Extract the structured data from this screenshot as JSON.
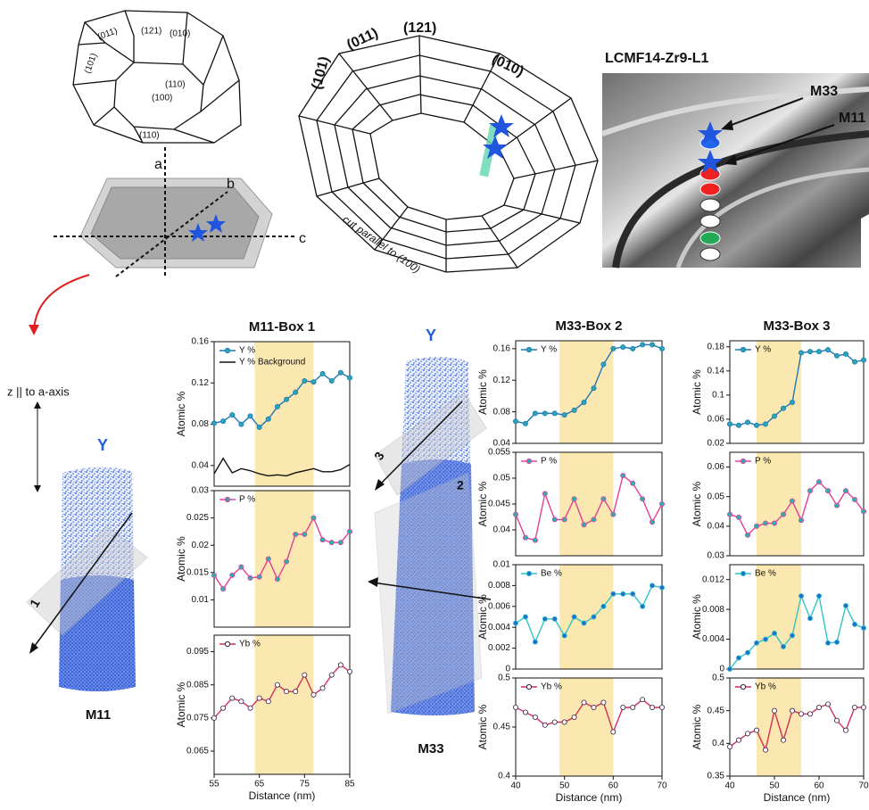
{
  "figure": {
    "crystal_faces": [
      "(011)",
      "(121)",
      "(010)",
      "(101)",
      "(110)",
      "(100)",
      "(110)"
    ],
    "axes": [
      "a",
      "b",
      "c"
    ],
    "ring_faces": [
      "(101)",
      "(011)",
      "(121)",
      "(010)"
    ],
    "cut_label": "cut parallel to (100)",
    "image_title": "LCMF14-Zr9-L1",
    "image_labels": [
      "M33",
      "M11"
    ],
    "z_label": "z || to a-axis",
    "m11": {
      "element": "Y",
      "box": "1",
      "name": "M11"
    },
    "m33": {
      "element": "Y",
      "boxes": [
        "3",
        "2"
      ],
      "name": "M33"
    }
  },
  "chart_data": [
    {
      "type": "line",
      "title": "M11-Box 1",
      "ylabel": "Atomic %",
      "legend": "upper left",
      "highlight": [
        64,
        77
      ],
      "x": [
        55,
        57,
        59,
        61,
        63,
        65,
        67,
        69,
        71,
        73,
        75,
        77,
        79,
        81,
        83,
        85
      ],
      "xlim": [
        55,
        85
      ],
      "ylim": [
        0.02,
        0.16
      ],
      "yticks": [
        0.04,
        0.08,
        0.12,
        0.16
      ],
      "series": [
        {
          "name": "Y %",
          "color": "#1f77b4",
          "marker_color": "#2aa6b8",
          "values": [
            0.081,
            0.083,
            0.089,
            0.08,
            0.088,
            0.077,
            0.085,
            0.097,
            0.104,
            0.111,
            0.122,
            0.121,
            0.129,
            0.122,
            0.13,
            0.125
          ]
        },
        {
          "name": "Y % Background",
          "color": "#111111",
          "values": [
            0.032,
            0.047,
            0.033,
            0.037,
            0.035,
            0.032,
            0.03,
            0.031,
            0.03,
            0.033,
            0.035,
            0.037,
            0.034,
            0.034,
            0.036,
            0.041
          ]
        }
      ]
    },
    {
      "type": "line",
      "ylabel": "Atomic %",
      "legend": "upper left",
      "highlight": [
        64,
        77
      ],
      "x": [
        55,
        57,
        59,
        61,
        63,
        65,
        67,
        69,
        71,
        73,
        75,
        77,
        79,
        81,
        83,
        85
      ],
      "xlim": [
        55,
        85
      ],
      "ylim": [
        0.005,
        0.03
      ],
      "yticks": [
        0.01,
        0.015,
        0.02,
        0.025,
        0.03
      ],
      "series": [
        {
          "name": "P %",
          "color": "#e0409a",
          "marker_color": "#2ab0b0",
          "values": [
            0.0145,
            0.012,
            0.0145,
            0.016,
            0.014,
            0.0142,
            0.0175,
            0.0138,
            0.017,
            0.022,
            0.022,
            0.025,
            0.021,
            0.0205,
            0.0205,
            0.0225
          ]
        }
      ]
    },
    {
      "type": "line",
      "ylabel": "Atomic %",
      "xlabel": "Distance (nm)",
      "legend": "upper left",
      "highlight": [
        64,
        77
      ],
      "x": [
        55,
        57,
        59,
        61,
        63,
        65,
        67,
        69,
        71,
        73,
        75,
        77,
        79,
        81,
        83,
        85
      ],
      "xlim": [
        55,
        85
      ],
      "xticks": [
        55,
        65,
        75,
        85
      ],
      "ylim": [
        0.058,
        0.1
      ],
      "yticks": [
        0.065,
        0.075,
        0.085,
        0.095
      ],
      "series": [
        {
          "name": "Yb %",
          "color": "#d0305a",
          "marker_color": "#ffffff",
          "values": [
            0.075,
            0.078,
            0.081,
            0.08,
            0.078,
            0.081,
            0.08,
            0.085,
            0.083,
            0.083,
            0.088,
            0.082,
            0.084,
            0.088,
            0.091,
            0.089
          ]
        }
      ]
    },
    {
      "type": "line",
      "title": "M33-Box 2",
      "ylabel": "Atomic %",
      "legend": "upper left",
      "highlight": [
        49,
        60
      ],
      "x": [
        40,
        42,
        44,
        46,
        48,
        50,
        52,
        54,
        56,
        58,
        60,
        62,
        64,
        66,
        68,
        70
      ],
      "xlim": [
        40,
        70
      ],
      "ylim": [
        0.04,
        0.17
      ],
      "yticks": [
        0.04,
        0.08,
        0.12,
        0.16
      ],
      "series": [
        {
          "name": "Y %",
          "color": "#1f77b4",
          "marker_color": "#2aa6b8",
          "values": [
            0.068,
            0.065,
            0.078,
            0.078,
            0.078,
            0.076,
            0.082,
            0.092,
            0.11,
            0.14,
            0.16,
            0.162,
            0.16,
            0.165,
            0.165,
            0.16
          ]
        }
      ]
    },
    {
      "type": "line",
      "ylabel": "Atomic %",
      "legend": "upper left",
      "highlight": [
        49,
        60
      ],
      "x": [
        40,
        42,
        44,
        46,
        48,
        50,
        52,
        54,
        56,
        58,
        60,
        62,
        64,
        66,
        68,
        70
      ],
      "xlim": [
        40,
        70
      ],
      "ylim": [
        0.035,
        0.055
      ],
      "yticks": [
        0.04,
        0.045,
        0.05,
        0.055
      ],
      "series": [
        {
          "name": "P %",
          "color": "#e0409a",
          "marker_color": "#2ab0b0",
          "values": [
            0.043,
            0.0385,
            0.038,
            0.047,
            0.042,
            0.042,
            0.046,
            0.041,
            0.042,
            0.046,
            0.043,
            0.0505,
            0.049,
            0.046,
            0.0415,
            0.045
          ]
        }
      ]
    },
    {
      "type": "line",
      "ylabel": "Atomic %",
      "legend": "upper left",
      "highlight": [
        49,
        60
      ],
      "x": [
        40,
        42,
        44,
        46,
        48,
        50,
        52,
        54,
        56,
        58,
        60,
        62,
        64,
        66,
        68,
        70
      ],
      "xlim": [
        40,
        70
      ],
      "ylim": [
        0,
        0.01
      ],
      "yticks": [
        0,
        0.002,
        0.004,
        0.006,
        0.008,
        0.01
      ],
      "series": [
        {
          "name": "Be %",
          "color": "#33c4c4",
          "marker_color": "#1f6fd0",
          "values": [
            0.0044,
            0.005,
            0.0026,
            0.0048,
            0.0048,
            0.0032,
            0.005,
            0.0044,
            0.005,
            0.006,
            0.0072,
            0.0072,
            0.0072,
            0.006,
            0.008,
            0.0078
          ]
        }
      ]
    },
    {
      "type": "line",
      "ylabel": "Atomic %",
      "xlabel": "Distance (nm)",
      "legend": "upper left",
      "highlight": [
        49,
        60
      ],
      "x": [
        40,
        42,
        44,
        46,
        48,
        50,
        52,
        54,
        56,
        58,
        60,
        62,
        64,
        66,
        68,
        70
      ],
      "xlim": [
        40,
        70
      ],
      "xticks": [
        40,
        50,
        60,
        70
      ],
      "ylim": [
        0.4,
        0.5
      ],
      "yticks": [
        0.4,
        0.45,
        0.5
      ],
      "series": [
        {
          "name": "Yb %",
          "color": "#d0305a",
          "marker_color": "#ffffff",
          "values": [
            0.47,
            0.465,
            0.46,
            0.452,
            0.455,
            0.455,
            0.46,
            0.475,
            0.47,
            0.475,
            0.445,
            0.47,
            0.47,
            0.478,
            0.47,
            0.47
          ]
        }
      ]
    },
    {
      "type": "line",
      "title": "M33-Box 3",
      "ylabel": "Atomic %",
      "legend": "upper left",
      "highlight": [
        46,
        56
      ],
      "x": [
        40,
        42,
        44,
        46,
        48,
        50,
        52,
        54,
        56,
        58,
        60,
        62,
        64,
        66,
        68,
        70
      ],
      "xlim": [
        40,
        70
      ],
      "ylim": [
        0.02,
        0.19
      ],
      "yticks": [
        0.02,
        0.06,
        0.1,
        0.14,
        0.18
      ],
      "series": [
        {
          "name": "Y %",
          "color": "#1f77b4",
          "marker_color": "#2aa6b8",
          "values": [
            0.052,
            0.05,
            0.055,
            0.05,
            0.052,
            0.065,
            0.078,
            0.088,
            0.17,
            0.172,
            0.172,
            0.175,
            0.165,
            0.168,
            0.155,
            0.158
          ]
        }
      ]
    },
    {
      "type": "line",
      "ylabel": "Atomic %",
      "legend": "upper left",
      "highlight": [
        46,
        56
      ],
      "x": [
        40,
        42,
        44,
        46,
        48,
        50,
        52,
        54,
        56,
        58,
        60,
        62,
        64,
        66,
        68,
        70
      ],
      "xlim": [
        40,
        70
      ],
      "ylim": [
        0.03,
        0.065
      ],
      "yticks": [
        0.03,
        0.04,
        0.05,
        0.06
      ],
      "series": [
        {
          "name": "P %",
          "color": "#e0409a",
          "marker_color": "#2ab0b0",
          "values": [
            0.044,
            0.043,
            0.037,
            0.04,
            0.041,
            0.041,
            0.044,
            0.0485,
            0.042,
            0.052,
            0.055,
            0.052,
            0.047,
            0.052,
            0.049,
            0.045
          ]
        }
      ]
    },
    {
      "type": "line",
      "ylabel": "Atomic %",
      "legend": "upper left",
      "highlight": [
        46,
        56
      ],
      "x": [
        40,
        42,
        44,
        46,
        48,
        50,
        52,
        54,
        56,
        58,
        60,
        62,
        64,
        66,
        68,
        70
      ],
      "xlim": [
        40,
        70
      ],
      "ylim": [
        0,
        0.014
      ],
      "yticks": [
        0,
        0.004,
        0.008,
        0.012
      ],
      "series": [
        {
          "name": "Be %",
          "color": "#33c4c4",
          "marker_color": "#1f6fd0",
          "values": [
            0,
            0.0015,
            0.0022,
            0.0035,
            0.004,
            0.0048,
            0.003,
            0.0045,
            0.0098,
            0.0068,
            0.0098,
            0.0035,
            0.0036,
            0.0085,
            0.006,
            0.0055
          ]
        }
      ]
    },
    {
      "type": "line",
      "ylabel": "Atomic %",
      "xlabel": "Distance (nm)",
      "legend": "upper left",
      "highlight": [
        46,
        56
      ],
      "x": [
        40,
        42,
        44,
        46,
        48,
        50,
        52,
        54,
        56,
        58,
        60,
        62,
        64,
        66,
        68,
        70
      ],
      "xlim": [
        40,
        70
      ],
      "xticks": [
        40,
        50,
        60,
        70
      ],
      "ylim": [
        0.35,
        0.5
      ],
      "yticks": [
        0.35,
        0.4,
        0.45,
        0.5
      ],
      "series": [
        {
          "name": "Yb %",
          "color": "#d0305a",
          "marker_color": "#ffffff",
          "values": [
            0.395,
            0.405,
            0.415,
            0.42,
            0.39,
            0.45,
            0.405,
            0.45,
            0.445,
            0.445,
            0.455,
            0.46,
            0.435,
            0.42,
            0.455,
            0.455
          ]
        }
      ]
    }
  ]
}
